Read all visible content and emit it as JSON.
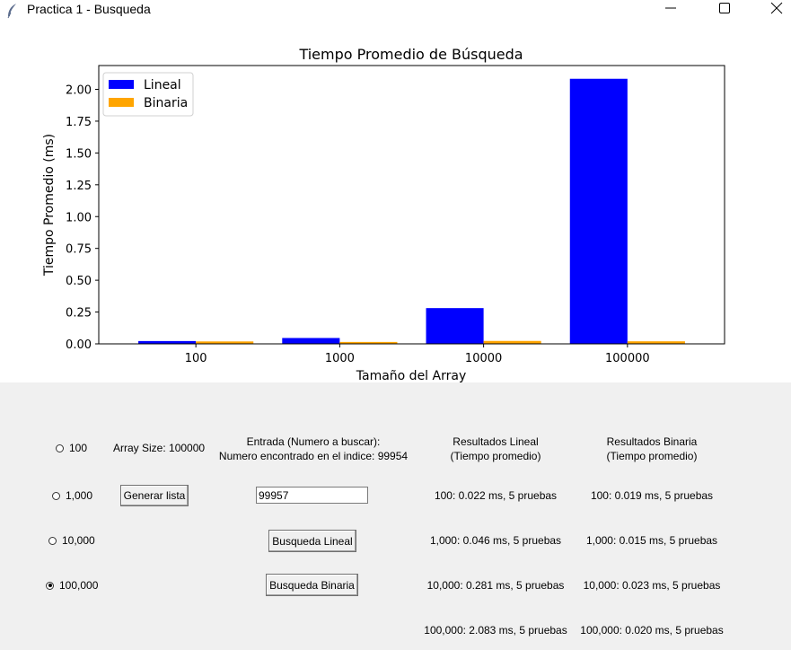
{
  "window": {
    "title": "Practica 1 - Busqueda",
    "icon": "feather-icon"
  },
  "chart_data": {
    "type": "bar",
    "title": "Tiempo Promedio de Búsqueda",
    "xlabel": "Tamaño del Array",
    "ylabel": "Tiempo Promedio (ms)",
    "categories": [
      "100",
      "1000",
      "10000",
      "100000"
    ],
    "series": [
      {
        "name": "Lineal",
        "color": "#0000ff",
        "values": [
          0.022,
          0.046,
          0.281,
          2.083
        ]
      },
      {
        "name": "Binaria",
        "color": "#ffa500",
        "values": [
          0.019,
          0.015,
          0.023,
          0.02
        ]
      }
    ],
    "yticks": [
      "0.00",
      "0.25",
      "0.50",
      "0.75",
      "1.00",
      "1.25",
      "1.50",
      "1.75",
      "2.00"
    ],
    "ylim": [
      0,
      2.187
    ],
    "grid": false,
    "legend": "top-left"
  },
  "controls": {
    "sizes": [
      {
        "label": "100",
        "selected": false
      },
      {
        "label": "1,000",
        "selected": false
      },
      {
        "label": "10,000",
        "selected": false
      },
      {
        "label": "100,000",
        "selected": true
      }
    ],
    "array_size": "Array Size: 100000",
    "generate_button": "Generar lista",
    "entry_label_1": "Entrada (Numero a buscar):",
    "entry_label_2": "Numero encontrado en el indice: 99954",
    "entry_value": "99957",
    "linear_button": "Busqueda Lineal",
    "binary_button": "Busqueda Binaria",
    "linear_header_1": "Resultados Lineal",
    "linear_header_2": "(Tiempo promedio)",
    "binary_header_1": "Resultados Binaria",
    "binary_header_2": "(Tiempo promedio)",
    "linear_results": [
      "100: 0.022 ms, 5 pruebas",
      "1,000: 0.046 ms, 5 pruebas",
      "10,000: 0.281 ms, 5 pruebas",
      "100,000: 2.083 ms, 5 pruebas"
    ],
    "binary_results": [
      "100: 0.019 ms, 5 pruebas",
      "1,000: 0.015 ms, 5 pruebas",
      "10,000: 0.023 ms, 5 pruebas",
      "100,000: 0.020 ms, 5 pruebas"
    ]
  }
}
